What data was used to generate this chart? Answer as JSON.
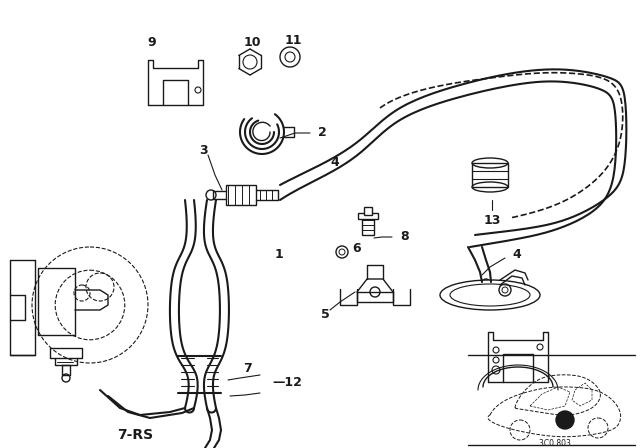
{
  "background_color": "#ffffff",
  "line_color": "#1a1a1a",
  "lw": 1.0,
  "fig_width": 6.4,
  "fig_height": 4.48,
  "dpi": 100,
  "label_fs": 8,
  "bold_label_fs": 9
}
